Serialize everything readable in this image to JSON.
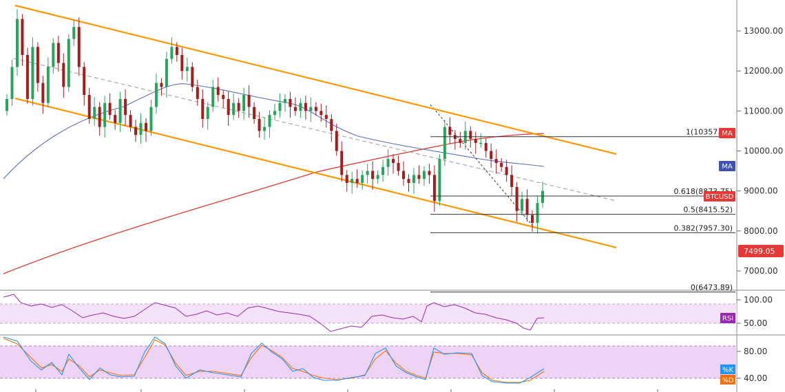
{
  "chart_data": {
    "type": "candlestick",
    "symbol": "BTCUSD",
    "last_price": "7499.05",
    "main_axis": {
      "ticks": [
        "13000.00",
        "12000.00",
        "11000.00",
        "10000.00",
        "9000.00",
        "8000.00",
        "7000.00"
      ],
      "values": [
        13000,
        12000,
        11000,
        10000,
        9000,
        8000,
        7000
      ]
    },
    "fibonacci": [
      {
        "label": "1(10357.16)",
        "value": 10357.16
      },
      {
        "label": "0.618(8873.75)",
        "value": 8873.75
      },
      {
        "label": "0.5(8415.52)",
        "value": 8415.52
      },
      {
        "label": "0.382(7957.30)",
        "value": 7957.3
      },
      {
        "label": "0(6473.89)",
        "value": 6473.89
      }
    ],
    "indicator_tags": [
      {
        "label": "MA",
        "color": "#e53935"
      },
      {
        "label": "MA",
        "color": "#3f51b5"
      },
      {
        "label": "BTCUSD",
        "color": "#e53935"
      }
    ],
    "rsi": {
      "label": "RSI",
      "ticks": [
        "100.00",
        "50.00"
      ],
      "values": [
        100,
        50
      ],
      "color": "#9c27b0"
    },
    "stoch": {
      "labels": [
        "%K",
        "%D"
      ],
      "colors": [
        "#2196f3",
        "#ff6d00"
      ],
      "ticks": [
        "80.00",
        "40.00"
      ],
      "values": [
        80,
        40
      ]
    },
    "colors": {
      "up": "#26a65b",
      "down": "#a61c1c",
      "channel": "#ff9800",
      "ma_fast": "#5c6bc0",
      "ma_slow": "#e53935",
      "price_tag": "#e53935",
      "rsi_band": "#f3e0f7",
      "stoch_band": "#e8c8f2"
    },
    "close_series": [
      11300,
      12100,
      13300,
      12400,
      11300,
      12600,
      11700,
      11200,
      12100,
      12700,
      12200,
      11600,
      12800,
      13100,
      12100,
      11400,
      10800,
      11100,
      10600,
      11200,
      10900,
      10700,
      11300,
      10900,
      10600,
      10400,
      10700,
      10500,
      11100,
      11700,
      11600,
      12300,
      12600,
      12400,
      12000,
      12100,
      11600,
      11300,
      10800,
      11100,
      11600,
      11400,
      11300,
      10900,
      11200,
      11000,
      11400,
      11100,
      10800,
      10500,
      10600,
      10900,
      11000,
      11200,
      11300,
      11100,
      11000,
      11200,
      11000,
      11100,
      11000,
      10900,
      10800,
      10500,
      10000,
      9400,
      9200,
      9300,
      9200,
      9400,
      9500,
      9300,
      9400,
      9600,
      9800,
      9700,
      9500,
      9300,
      9200,
      9400,
      9300,
      9500,
      9400,
      8750,
      9800,
      10600,
      10400,
      10300,
      10200,
      10500,
      10300,
      10200,
      10200,
      10000,
      9800,
      9700,
      9600,
      9400,
      9100,
      8500,
      8800,
      8400,
      8200,
      8700,
      9000
    ]
  }
}
